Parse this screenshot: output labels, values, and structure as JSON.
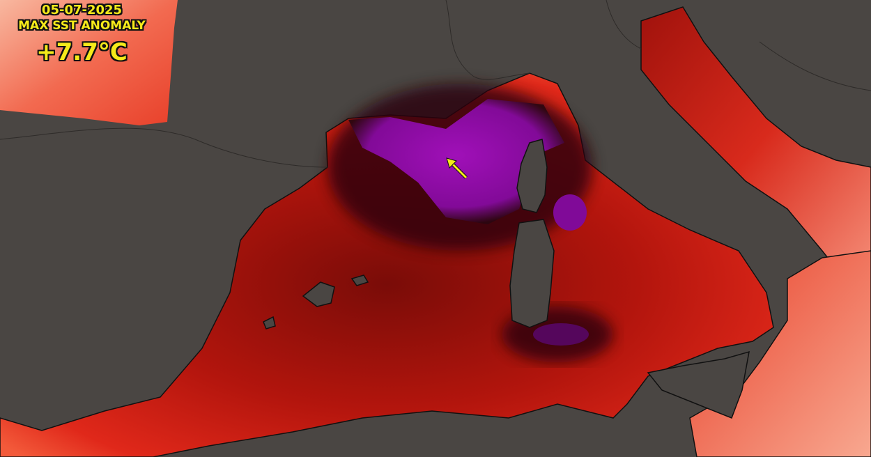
{
  "overlay": {
    "date": "05-07-2025",
    "title": "MAX SST ANOMALY",
    "value": "+7.7°C"
  },
  "colors": {
    "land": "#4a4643",
    "anomaly_high": "#e0281a",
    "anomaly_low": "#f8b8a0",
    "anomaly_extreme": "#8a0ca0",
    "annotation": "#f5ea1a"
  },
  "annotation": {
    "icon": "arrow-icon",
    "points_to": "max anomaly location"
  }
}
